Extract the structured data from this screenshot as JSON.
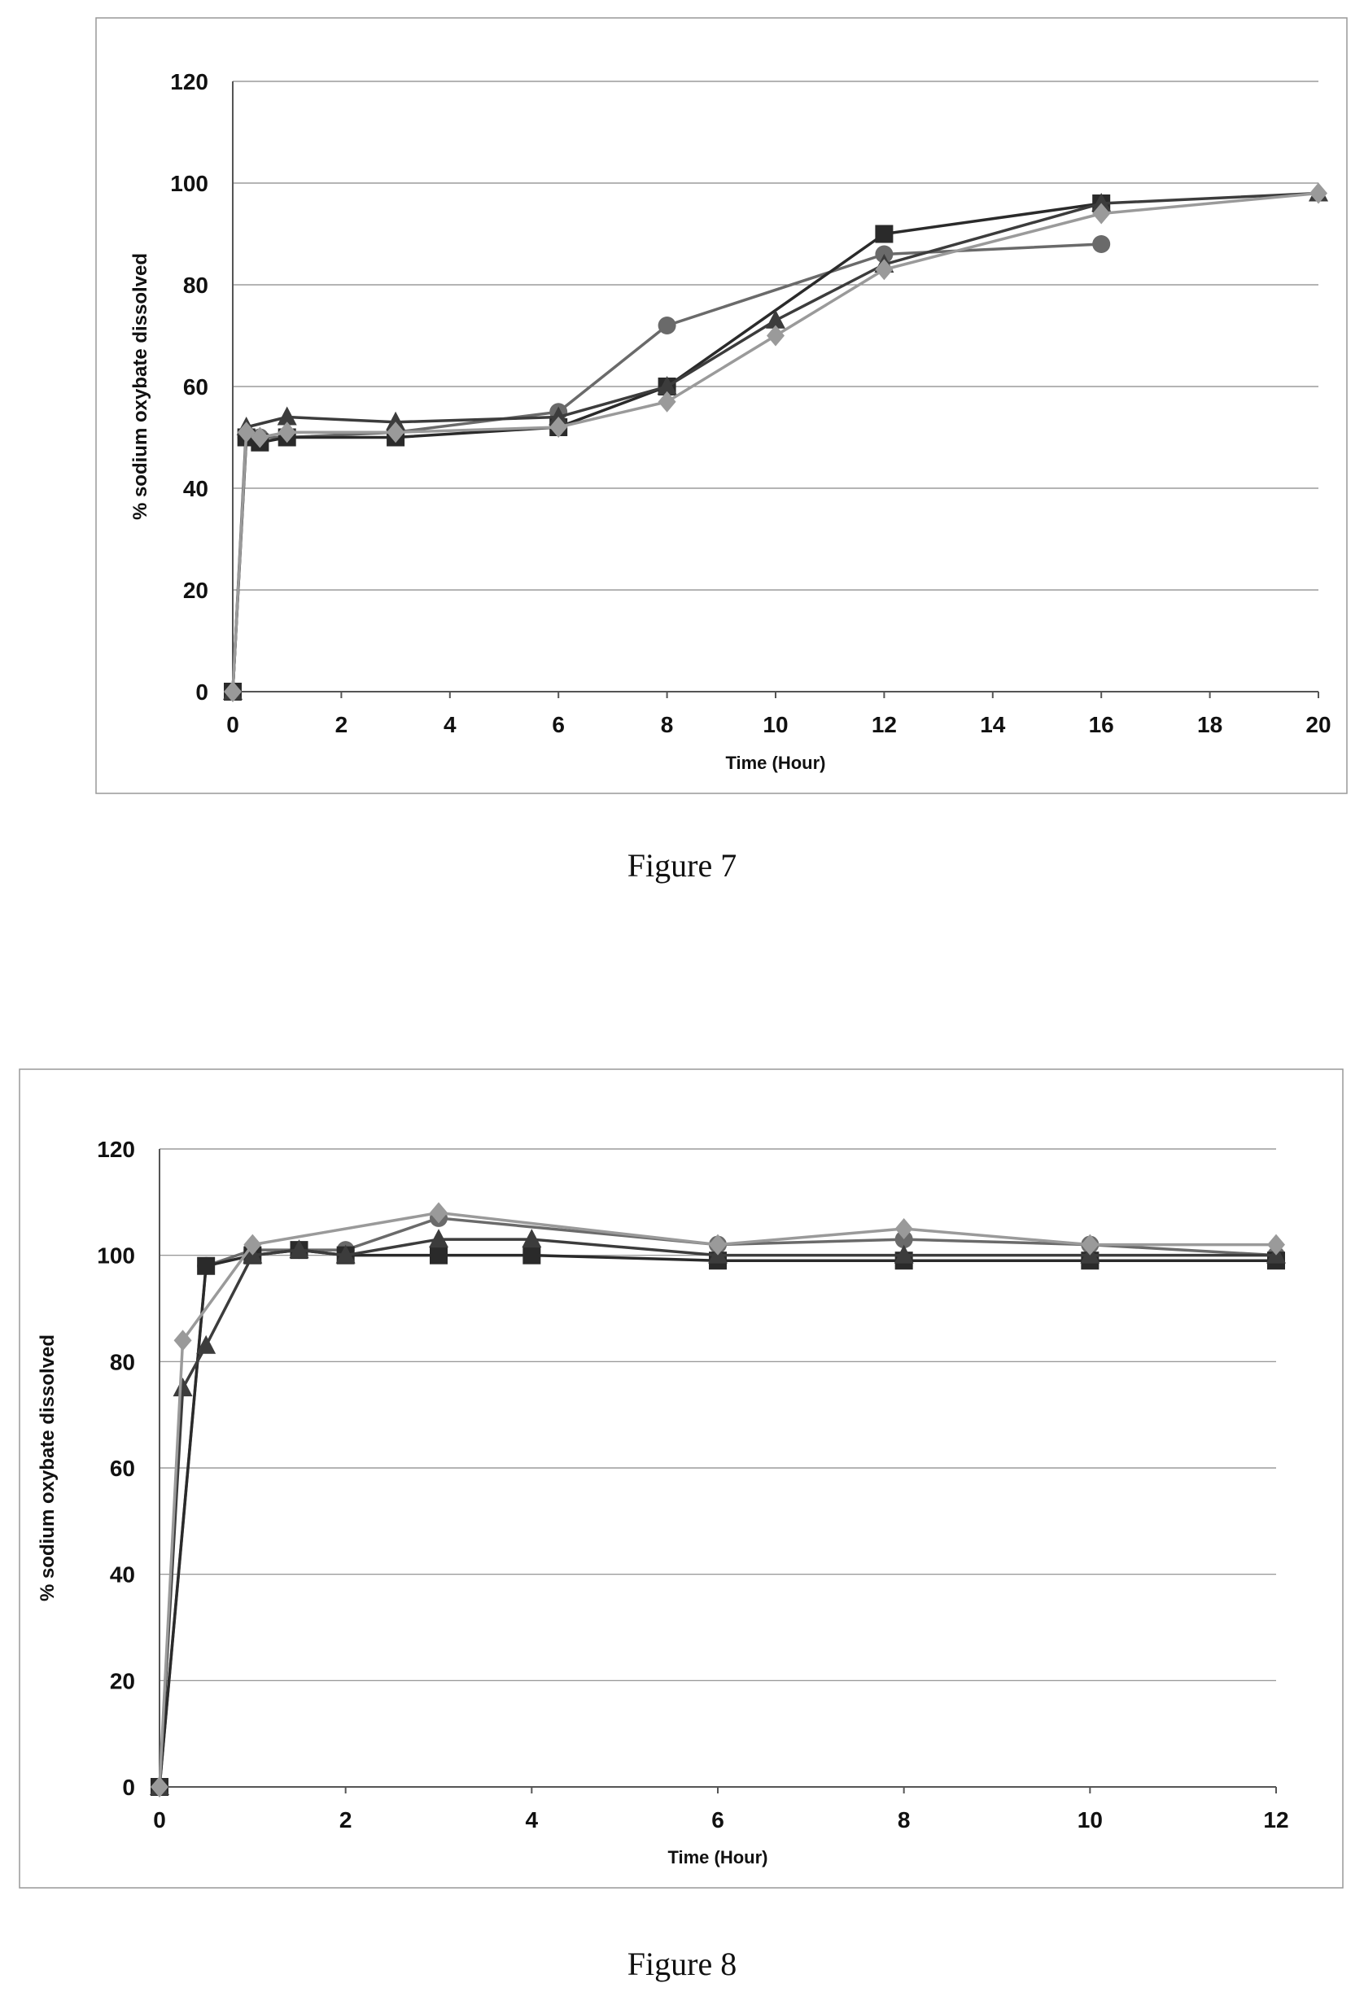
{
  "captions": {
    "fig7": "Figure 7",
    "fig8": "Figure 8"
  },
  "chart_data": [
    {
      "type": "line",
      "xlabel": "Time (Hour)",
      "ylabel": "% sodium oxybate dissolved",
      "xlim": [
        0,
        20
      ],
      "ylim": [
        0,
        120
      ],
      "xticks": [
        0,
        2,
        4,
        6,
        8,
        10,
        12,
        14,
        16,
        18,
        20
      ],
      "yticks": [
        0,
        20,
        40,
        60,
        80,
        100,
        120
      ],
      "grid": "horizontal",
      "series": [
        {
          "marker": "circle",
          "color": "#6a6a6a",
          "points": [
            [
              0,
              0
            ],
            [
              0.25,
              50
            ],
            [
              0.5,
              50
            ],
            [
              1,
              50
            ],
            [
              3,
              51
            ],
            [
              6,
              55
            ],
            [
              8,
              72
            ],
            [
              12,
              86
            ],
            [
              16,
              88
            ]
          ]
        },
        {
          "marker": "square",
          "color": "#2a2a2a",
          "points": [
            [
              0,
              0
            ],
            [
              0.25,
              50
            ],
            [
              0.5,
              49
            ],
            [
              1,
              50
            ],
            [
              3,
              50
            ],
            [
              6,
              52
            ],
            [
              8,
              60
            ],
            [
              12,
              90
            ],
            [
              16,
              96
            ]
          ]
        },
        {
          "marker": "triangle",
          "color": "#3c3c3c",
          "points": [
            [
              0,
              0
            ],
            [
              0.25,
              52
            ],
            [
              1,
              54
            ],
            [
              3,
              53
            ],
            [
              6,
              54
            ],
            [
              8,
              60
            ],
            [
              10,
              73
            ],
            [
              12,
              84
            ],
            [
              16,
              96
            ],
            [
              20,
              98
            ]
          ]
        },
        {
          "marker": "diamond",
          "color": "#9a9a9a",
          "points": [
            [
              0,
              0
            ],
            [
              0.25,
              51
            ],
            [
              0.5,
              50
            ],
            [
              1,
              51
            ],
            [
              3,
              51
            ],
            [
              6,
              52
            ],
            [
              8,
              57
            ],
            [
              10,
              70
            ],
            [
              12,
              83
            ],
            [
              16,
              94
            ],
            [
              20,
              98
            ]
          ]
        }
      ]
    },
    {
      "type": "line",
      "xlabel": "Time (Hour)",
      "ylabel": "% sodium oxybate dissolved",
      "xlim": [
        0,
        12
      ],
      "ylim": [
        0,
        120
      ],
      "xticks": [
        0,
        2,
        4,
        6,
        8,
        10,
        12
      ],
      "yticks": [
        0,
        20,
        40,
        60,
        80,
        100,
        120
      ],
      "grid": "horizontal",
      "series": [
        {
          "marker": "circle",
          "color": "#6a6a6a",
          "points": [
            [
              0,
              0
            ],
            [
              0.5,
              98
            ],
            [
              1,
              101
            ],
            [
              1.5,
              101
            ],
            [
              2,
              101
            ],
            [
              3,
              107
            ],
            [
              6,
              102
            ],
            [
              8,
              103
            ],
            [
              10,
              102
            ],
            [
              12,
              100
            ]
          ]
        },
        {
          "marker": "square",
          "color": "#2a2a2a",
          "points": [
            [
              0,
              0
            ],
            [
              0.5,
              98
            ],
            [
              1,
              100
            ],
            [
              1.5,
              101
            ],
            [
              2,
              100
            ],
            [
              3,
              100
            ],
            [
              4,
              100
            ],
            [
              6,
              99
            ],
            [
              8,
              99
            ],
            [
              10,
              99
            ],
            [
              12,
              99
            ]
          ]
        },
        {
          "marker": "triangle",
          "color": "#3c3c3c",
          "points": [
            [
              0,
              0
            ],
            [
              0.25,
              75
            ],
            [
              0.5,
              83
            ],
            [
              1,
              100
            ],
            [
              1.5,
              101
            ],
            [
              2,
              100
            ],
            [
              3,
              103
            ],
            [
              4,
              103
            ],
            [
              6,
              100
            ],
            [
              8,
              100
            ],
            [
              10,
              100
            ],
            [
              12,
              100
            ]
          ]
        },
        {
          "marker": "diamond",
          "color": "#9a9a9a",
          "points": [
            [
              0,
              0
            ],
            [
              0.25,
              84
            ],
            [
              1,
              102
            ],
            [
              3,
              108
            ],
            [
              6,
              102
            ],
            [
              8,
              105
            ],
            [
              10,
              102
            ],
            [
              12,
              102
            ]
          ]
        }
      ]
    }
  ]
}
